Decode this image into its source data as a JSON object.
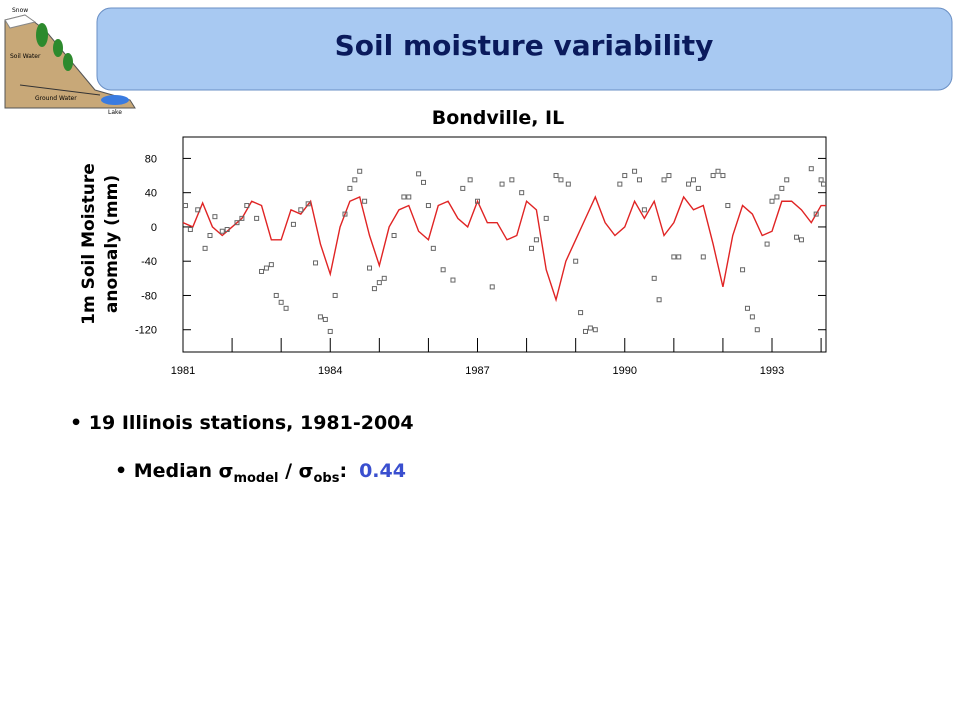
{
  "slide": {
    "title": "Soil moisture variability",
    "illustration_labels": [
      "Snow",
      "Soil Water",
      "Ground Water",
      "Lake"
    ],
    "bullet1": "19 Illinois stations, 1981-2004",
    "bullet2": {
      "prefix": "Median σ",
      "sub1": "model",
      "mid": " / σ",
      "sub2": "obs",
      "suffix": ":",
      "value": "0.44"
    }
  },
  "chart_data": {
    "type": "line",
    "title": "Bondville, IL",
    "ylabel": [
      "1m Soil Moisture",
      "anomaly (mm)"
    ],
    "xlim": [
      1981,
      1994.1
    ],
    "xticks": [
      1981,
      1984,
      1987,
      1990,
      1993
    ],
    "xminor_ticks": [
      1982,
      1983,
      1985,
      1986,
      1988,
      1989,
      1991,
      1992,
      1994
    ],
    "ylim": [
      -146,
      105
    ],
    "yticks": [
      -120,
      -80,
      -40,
      0,
      40,
      80
    ],
    "series": [
      {
        "type": "line",
        "color": "#e02424",
        "x": [
          1981.0,
          1981.2,
          1981.4,
          1981.6,
          1981.8,
          1982.0,
          1982.2,
          1982.4,
          1982.6,
          1982.8,
          1983.0,
          1983.2,
          1983.4,
          1983.6,
          1983.8,
          1984.0,
          1984.2,
          1984.4,
          1984.6,
          1984.8,
          1985.0,
          1985.2,
          1985.4,
          1985.6,
          1985.8,
          1986.0,
          1986.2,
          1986.4,
          1986.6,
          1986.8,
          1987.0,
          1987.2,
          1987.4,
          1987.6,
          1987.8,
          1988.0,
          1988.2,
          1988.4,
          1988.6,
          1988.8,
          1989.0,
          1989.2,
          1989.4,
          1989.6,
          1989.8,
          1990.0,
          1990.2,
          1990.4,
          1990.6,
          1990.8,
          1991.0,
          1991.2,
          1991.4,
          1991.6,
          1991.8,
          1992.0,
          1992.2,
          1992.4,
          1992.6,
          1992.8,
          1993.0,
          1993.2,
          1993.4,
          1993.6,
          1993.8,
          1994.0,
          1994.1
        ],
        "values": [
          5,
          0,
          28,
          0,
          -10,
          0,
          10,
          30,
          25,
          -15,
          -15,
          20,
          15,
          30,
          -20,
          -55,
          0,
          30,
          35,
          -10,
          -45,
          0,
          20,
          25,
          -5,
          -15,
          25,
          30,
          10,
          0,
          30,
          5,
          5,
          -15,
          -10,
          30,
          20,
          -50,
          -85,
          -40,
          -15,
          10,
          35,
          5,
          -10,
          0,
          30,
          10,
          30,
          -10,
          5,
          35,
          20,
          25,
          -20,
          -70,
          -10,
          25,
          15,
          -10,
          -5,
          30,
          30,
          20,
          5,
          25,
          25
        ]
      },
      {
        "type": "scatter",
        "color": "#666666",
        "x": [
          1981.05,
          1981.15,
          1981.3,
          1981.45,
          1981.55,
          1981.65,
          1981.8,
          1981.9,
          1982.1,
          1982.2,
          1982.3,
          1982.5,
          1982.6,
          1982.7,
          1982.8,
          1982.9,
          1983.0,
          1983.1,
          1983.25,
          1983.4,
          1983.55,
          1983.7,
          1983.8,
          1983.9,
          1984.0,
          1984.1,
          1984.3,
          1984.4,
          1984.5,
          1984.6,
          1984.7,
          1984.8,
          1984.9,
          1985.0,
          1985.1,
          1985.3,
          1985.5,
          1985.6,
          1985.8,
          1985.9,
          1986.0,
          1986.1,
          1986.3,
          1986.5,
          1986.7,
          1986.85,
          1987.0,
          1987.3,
          1987.5,
          1987.7,
          1987.9,
          1988.1,
          1988.2,
          1988.4,
          1988.6,
          1988.7,
          1988.85,
          1989.0,
          1989.1,
          1989.2,
          1989.3,
          1989.4,
          1989.9,
          1990.0,
          1990.2,
          1990.3,
          1990.4,
          1990.6,
          1990.7,
          1990.8,
          1990.9,
          1991.0,
          1991.1,
          1991.3,
          1991.4,
          1991.5,
          1991.6,
          1991.8,
          1991.9,
          1992.0,
          1992.1,
          1992.4,
          1992.5,
          1992.6,
          1992.7,
          1992.9,
          1993.0,
          1993.1,
          1993.2,
          1993.3,
          1993.5,
          1993.6,
          1993.8,
          1993.9,
          1994.0,
          1994.05
        ],
        "values": [
          25,
          -3,
          20,
          -25,
          -10,
          12,
          -5,
          -3,
          5,
          10,
          25,
          10,
          -52,
          -48,
          -44,
          -80,
          -88,
          -95,
          3,
          20,
          27,
          -42,
          -105,
          -108,
          -122,
          -80,
          15,
          45,
          55,
          65,
          30,
          -48,
          -72,
          -65,
          -60,
          -10,
          35,
          35,
          62,
          52,
          25,
          -25,
          -50,
          -62,
          45,
          55,
          30,
          -70,
          50,
          55,
          40,
          -25,
          -15,
          10,
          60,
          55,
          50,
          -40,
          -100,
          -122,
          -118,
          -120,
          50,
          60,
          65,
          55,
          20,
          -60,
          -85,
          55,
          60,
          -35,
          -35,
          50,
          55,
          45,
          -35,
          60,
          65,
          60,
          25,
          -50,
          -95,
          -105,
          -120,
          -20,
          30,
          35,
          45,
          55,
          -12,
          -15,
          68,
          15,
          55,
          50
        ]
      }
    ]
  }
}
